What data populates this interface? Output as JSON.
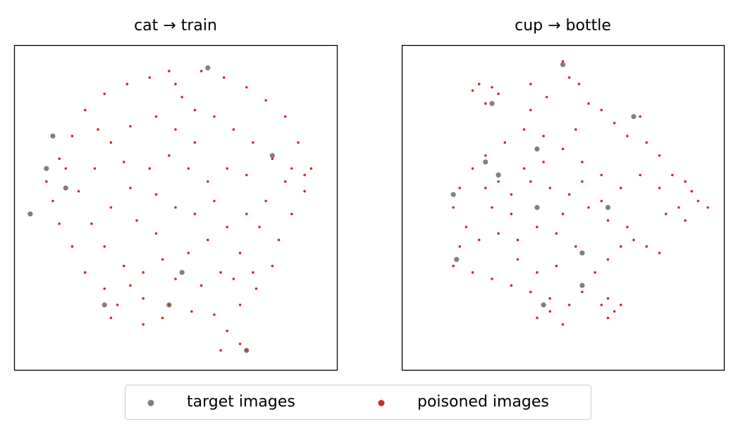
{
  "chart_data": [
    {
      "type": "scatter",
      "title": "cat → train",
      "xlim": [
        0,
        100
      ],
      "ylim": [
        0,
        100
      ],
      "series": [
        {
          "name": "target images",
          "color": "#808080",
          "x": [
            12,
            10,
            5,
            60,
            28,
            72,
            52,
            48,
            80,
            16
          ],
          "y": [
            72,
            62,
            48,
            93,
            20,
            6,
            30,
            20,
            66,
            56
          ]
        },
        {
          "name": "poisoned images",
          "color": "#d62728",
          "x": [
            10,
            14,
            18,
            22,
            28,
            35,
            42,
            50,
            58,
            65,
            72,
            78,
            84,
            88,
            92,
            90,
            86,
            82,
            80,
            75,
            70,
            62,
            55,
            48,
            40,
            32,
            28,
            22,
            18,
            14,
            12,
            20,
            25,
            30,
            36,
            44,
            50,
            56,
            62,
            68,
            74,
            80,
            84,
            78,
            72,
            66,
            60,
            54,
            46,
            40,
            34,
            28,
            24,
            30,
            36,
            42,
            48,
            54,
            60,
            66,
            72,
            76,
            70,
            64,
            58,
            50,
            44,
            38,
            50,
            56,
            62,
            44,
            34,
            26,
            16,
            86,
            90,
            68,
            74,
            36,
            30,
            40,
            66,
            70,
            72,
            64,
            46,
            56,
            52,
            48
          ],
          "y": [
            58,
            65,
            72,
            80,
            85,
            88,
            90,
            88,
            92,
            90,
            87,
            83,
            78,
            70,
            62,
            55,
            48,
            40,
            32,
            25,
            20,
            17,
            18,
            20,
            22,
            20,
            25,
            30,
            38,
            45,
            52,
            55,
            62,
            70,
            75,
            78,
            74,
            80,
            78,
            74,
            70,
            65,
            58,
            52,
            48,
            44,
            40,
            36,
            34,
            30,
            32,
            38,
            45,
            50,
            56,
            62,
            66,
            62,
            58,
            62,
            60,
            44,
            36,
            30,
            26,
            28,
            42,
            46,
            50,
            48,
            52,
            54,
            64,
            74,
            62,
            62,
            60,
            28,
            30,
            26,
            16,
            14,
            12,
            8,
            6,
            6,
            16,
            70,
            84,
            92
          ]
        }
      ]
    },
    {
      "type": "scatter",
      "title": "cup → bottle",
      "xlim": [
        0,
        100
      ],
      "ylim": [
        0,
        100
      ],
      "series": [
        {
          "name": "target images",
          "color": "#808080",
          "x": [
            28,
            50,
            72,
            42,
            16,
            30,
            17,
            42,
            56,
            44,
            56,
            64,
            26
          ],
          "y": [
            82,
            94,
            78,
            68,
            54,
            60,
            34,
            50,
            26,
            20,
            36,
            50,
            64
          ]
        },
        {
          "name": "poisoned images",
          "color": "#d62728",
          "x": [
            22,
            24,
            28,
            30,
            26,
            40,
            50,
            52,
            55,
            45,
            58,
            62,
            66,
            70,
            74,
            76,
            80,
            84,
            88,
            90,
            92,
            95,
            86,
            82,
            88,
            80,
            74,
            68,
            62,
            56,
            50,
            44,
            38,
            32,
            26,
            22,
            18,
            16,
            20,
            18,
            16,
            22,
            28,
            34,
            40,
            46,
            52,
            56,
            60,
            64,
            68,
            72,
            76,
            80,
            70,
            64,
            58,
            52,
            46,
            40,
            34,
            28,
            30,
            36,
            42,
            48,
            54,
            48,
            42,
            36,
            24,
            56,
            62,
            38,
            44,
            50,
            34,
            62,
            64,
            66,
            68,
            64,
            30,
            26,
            42,
            46,
            50,
            40,
            54
          ],
          "y": [
            86,
            88,
            87,
            85,
            82,
            88,
            95,
            90,
            88,
            84,
            82,
            80,
            76,
            72,
            78,
            70,
            66,
            60,
            58,
            55,
            52,
            50,
            50,
            48,
            46,
            56,
            60,
            56,
            60,
            64,
            68,
            72,
            74,
            70,
            66,
            62,
            56,
            50,
            44,
            38,
            32,
            30,
            28,
            26,
            24,
            22,
            20,
            24,
            30,
            34,
            38,
            40,
            38,
            36,
            44,
            46,
            50,
            54,
            56,
            58,
            54,
            50,
            42,
            40,
            44,
            42,
            38,
            32,
            30,
            34,
            40,
            58,
            52,
            62,
            64,
            48,
            48,
            20,
            22,
            18,
            20,
            16,
            58,
            56,
            16,
            18,
            14,
            80,
            74
          ]
        }
      ]
    }
  ]
}
